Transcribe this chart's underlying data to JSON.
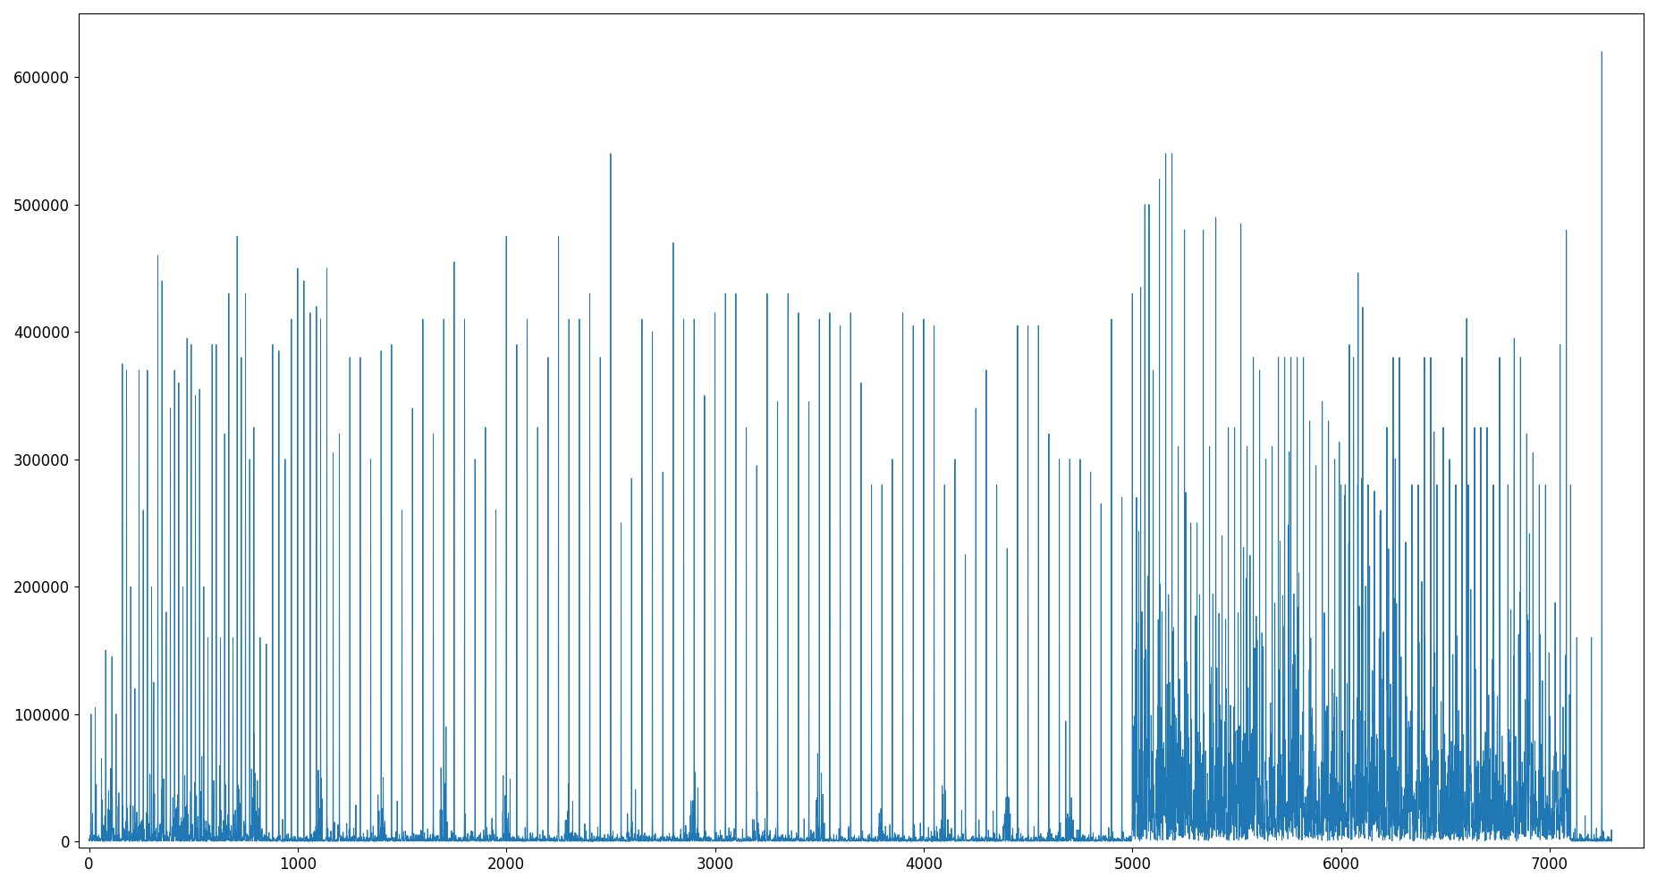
{
  "line_color": "#1f77b4",
  "background_color": "#ffffff",
  "xlim": [
    -50,
    7450
  ],
  "ylim": [
    -5000,
    650000
  ],
  "yticks": [
    0,
    100000,
    200000,
    300000,
    400000,
    500000,
    600000
  ],
  "xticks": [
    0,
    1000,
    2000,
    3000,
    4000,
    5000,
    6000,
    7000
  ],
  "figsize": [
    18.53,
    9.91
  ],
  "dpi": 100,
  "linewidth": 0.7
}
